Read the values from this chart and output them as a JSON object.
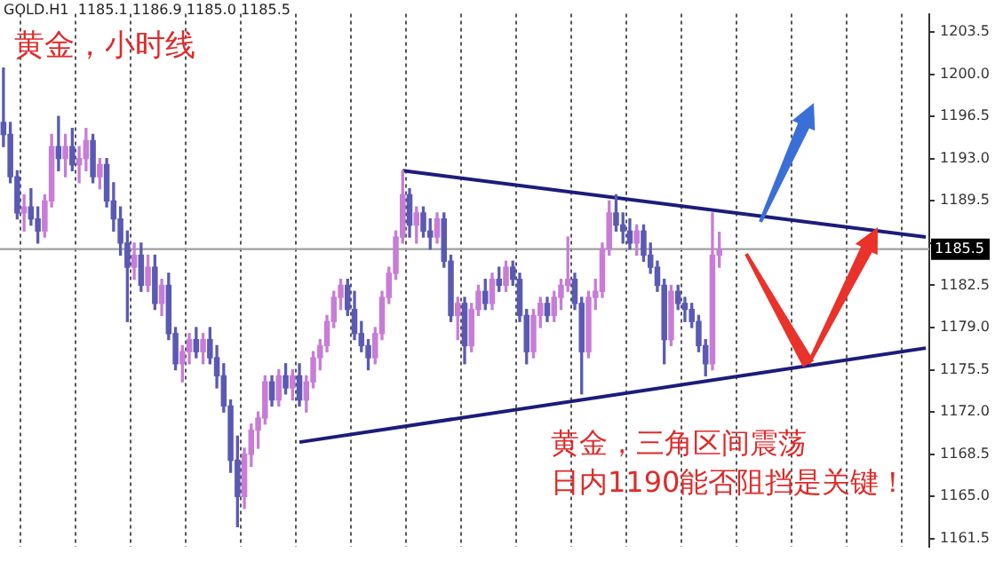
{
  "chart_data": {
    "type": "candlestick",
    "title": "黄金，小时线",
    "annotations": [
      "GOLD.H1  1185.1 1186.9 1185.0 1185.5",
      "黄金，三角区间震荡",
      "日内1190能否阻挡是关键！"
    ],
    "categories": [
      null,
      null,
      null,
      null,
      null,
      null,
      null,
      null,
      null,
      null,
      null,
      null,
      null,
      null,
      null,
      null,
      null,
      null,
      null,
      null,
      null,
      null,
      null,
      null,
      null,
      null,
      null,
      null,
      null,
      null,
      null,
      null,
      null,
      null,
      null,
      null,
      null,
      null,
      null,
      null,
      null,
      null,
      null,
      null,
      null,
      null,
      null,
      null,
      null,
      null,
      null,
      null,
      null,
      null,
      null,
      null,
      null,
      null,
      null,
      null,
      null,
      null,
      null,
      null,
      null,
      null,
      null,
      null,
      null,
      null,
      null,
      null,
      null,
      null,
      null,
      null,
      null,
      null,
      null,
      null,
      null,
      null,
      null,
      null,
      null,
      null,
      null,
      null,
      null,
      null,
      null,
      null,
      null,
      null,
      null,
      null,
      null,
      null,
      null,
      null,
      null,
      null,
      null,
      null,
      null,
      null,
      null,
      null,
      null,
      null,
      null,
      null,
      null,
      null,
      null,
      null,
      null,
      null,
      null,
      null,
      null,
      null,
      null,
      null,
      null,
      null,
      null,
      null,
      null,
      null,
      null,
      null,
      null,
      null,
      null
    ],
    "ohlc": [
      [
        1196,
        1200.5,
        1194,
        1195
      ],
      [
        1195,
        1196,
        1191,
        1191.5
      ],
      [
        1191.5,
        1192,
        1188,
        1188.5
      ],
      [
        1188.5,
        1190,
        1187,
        1189
      ],
      [
        1189,
        1190.5,
        1187.5,
        1188
      ],
      [
        1188,
        1189,
        1186,
        1187
      ],
      [
        1187,
        1190,
        1186.5,
        1189.5
      ],
      [
        1189.5,
        1195,
        1189,
        1194
      ],
      [
        1194,
        1196.5,
        1192,
        1193
      ],
      [
        1193,
        1195,
        1191.5,
        1194
      ],
      [
        1194,
        1195.5,
        1192,
        1192.5
      ],
      [
        1192.5,
        1194,
        1191,
        1193
      ],
      [
        1193,
        1195.5,
        1192,
        1194.5
      ],
      [
        1194.5,
        1195,
        1191,
        1191.5
      ],
      [
        1191.5,
        1193,
        1190.5,
        1192.5
      ],
      [
        1192.5,
        1193,
        1189,
        1189.5
      ],
      [
        1189.5,
        1191,
        1187,
        1188
      ],
      [
        1188,
        1189,
        1185,
        1186
      ],
      [
        1186,
        1187,
        1179.5,
        1184
      ],
      [
        1184,
        1186,
        1183,
        1185
      ],
      [
        1185,
        1186,
        1182,
        1182.5
      ],
      [
        1182.5,
        1185,
        1182,
        1184
      ],
      [
        1184,
        1185,
        1180.5,
        1181
      ],
      [
        1181,
        1183,
        1180,
        1182.5
      ],
      [
        1182.5,
        1183.5,
        1178,
        1178.5
      ],
      [
        1178.5,
        1179,
        1175.5,
        1176
      ],
      [
        1176,
        1177.5,
        1174.5,
        1177
      ],
      [
        1177,
        1178.5,
        1176,
        1178
      ],
      [
        1178,
        1179,
        1176.5,
        1177
      ],
      [
        1177,
        1178.5,
        1176,
        1178
      ],
      [
        1178,
        1179,
        1176,
        1176.5
      ],
      [
        1176.5,
        1177.5,
        1174,
        1175
      ],
      [
        1175,
        1176,
        1172,
        1172.5
      ],
      [
        1172.5,
        1173,
        1167,
        1168
      ],
      [
        1168,
        1170,
        1162.5,
        1165
      ],
      [
        1165,
        1169,
        1164,
        1168.5
      ],
      [
        1168.5,
        1171,
        1167.5,
        1170.5
      ],
      [
        1170.5,
        1172,
        1169,
        1171.5
      ],
      [
        1171.5,
        1175,
        1171,
        1174.5
      ],
      [
        1174.5,
        1175,
        1172.5,
        1173
      ],
      [
        1173,
        1175.5,
        1172.5,
        1175
      ],
      [
        1175,
        1176,
        1173.5,
        1174
      ],
      [
        1174,
        1175.5,
        1173,
        1175
      ],
      [
        1175,
        1176,
        1172.5,
        1173
      ],
      [
        1173,
        1175,
        1172,
        1174.5
      ],
      [
        1174.5,
        1177,
        1174,
        1176.5
      ],
      [
        1176.5,
        1178,
        1175.5,
        1177.5
      ],
      [
        1177.5,
        1180,
        1177,
        1179.5
      ],
      [
        1179.5,
        1182,
        1179,
        1181.5
      ],
      [
        1181.5,
        1183,
        1180.5,
        1182.5
      ],
      [
        1182.5,
        1183,
        1180,
        1180.5
      ],
      [
        1180.5,
        1182,
        1178,
        1178.5
      ],
      [
        1178.5,
        1179.5,
        1177,
        1177.5
      ],
      [
        1177.5,
        1178,
        1175.5,
        1176.5
      ],
      [
        1176.5,
        1179,
        1176,
        1178.5
      ],
      [
        1178.5,
        1182,
        1178,
        1181.5
      ],
      [
        1181.5,
        1184,
        1181,
        1183.5
      ],
      [
        1183.5,
        1187,
        1183,
        1186.5
      ],
      [
        1186.5,
        1192,
        1186,
        1190
      ],
      [
        1190,
        1190.5,
        1186.5,
        1187.5
      ],
      [
        1187.5,
        1189,
        1186,
        1188.5
      ],
      [
        1188.5,
        1189,
        1186.5,
        1187
      ],
      [
        1187,
        1188,
        1185.5,
        1186.5
      ],
      [
        1186.5,
        1188.5,
        1186,
        1188
      ],
      [
        1188,
        1188.5,
        1184,
        1184.5
      ],
      [
        1184.5,
        1185,
        1179.5,
        1180
      ],
      [
        1180,
        1181.5,
        1178,
        1181
      ],
      [
        1181,
        1181.5,
        1176,
        1177.5
      ],
      [
        1177.5,
        1181,
        1177,
        1180.5
      ],
      [
        1180.5,
        1182.5,
        1180,
        1182
      ],
      [
        1182,
        1183,
        1180.5,
        1181
      ],
      [
        1181,
        1183.5,
        1180.5,
        1183
      ],
      [
        1183,
        1184,
        1182,
        1182.5
      ],
      [
        1182.5,
        1184.5,
        1182,
        1184
      ],
      [
        1184,
        1184.5,
        1182.5,
        1183
      ],
      [
        1183,
        1183.5,
        1179.5,
        1180
      ],
      [
        1180,
        1180.5,
        1176,
        1177
      ],
      [
        1177,
        1180.5,
        1176.5,
        1180
      ],
      [
        1180,
        1181.5,
        1179,
        1181
      ],
      [
        1181,
        1181.5,
        1179.5,
        1180
      ],
      [
        1180,
        1182,
        1179.5,
        1181.5
      ],
      [
        1181.5,
        1183,
        1180.5,
        1182.5
      ],
      [
        1182.5,
        1186.5,
        1182,
        1183
      ],
      [
        1183,
        1183.5,
        1180.5,
        1181
      ],
      [
        1181,
        1181.5,
        1173.5,
        1177
      ],
      [
        1177,
        1182,
        1176.5,
        1181.5
      ],
      [
        1181.5,
        1183,
        1180.5,
        1182
      ],
      [
        1182,
        1186,
        1181.5,
        1185.5
      ],
      [
        1185.5,
        1189.5,
        1185,
        1188.5
      ],
      [
        1188.5,
        1190,
        1187,
        1187.5
      ],
      [
        1187.5,
        1188.5,
        1186,
        1187
      ],
      [
        1187,
        1188,
        1185.5,
        1186
      ],
      [
        1186,
        1187.5,
        1185,
        1187
      ],
      [
        1187,
        1187.5,
        1184.5,
        1185
      ],
      [
        1185,
        1186,
        1183.5,
        1184
      ],
      [
        1184,
        1184.5,
        1182,
        1182.5
      ],
      [
        1182.5,
        1183,
        1176,
        1178
      ],
      [
        1178,
        1182.5,
        1177.5,
        1182
      ],
      [
        1182,
        1182.5,
        1180.5,
        1181
      ],
      [
        1181,
        1181.5,
        1179.5,
        1180.5
      ],
      [
        1180.5,
        1181,
        1179,
        1179.5
      ],
      [
        1179.5,
        1180,
        1177,
        1177.5
      ],
      [
        1177.5,
        1178,
        1175,
        1176
      ],
      [
        1176,
        1188.5,
        1175.5,
        1185
      ],
      [
        1185,
        1186.9,
        1184,
        1185.5
      ],
      null,
      null,
      null,
      null,
      null,
      null,
      null,
      null,
      null,
      null,
      null,
      null,
      null,
      null,
      null,
      null,
      null,
      null,
      null,
      null,
      null,
      null,
      null,
      null,
      null,
      null,
      null,
      null,
      null,
      null
    ],
    "colors": [
      "#5a5ab4",
      "#5a5ab4",
      "#5a5ab4",
      "#c77dd6",
      "#5a5ab4",
      "#5a5ab4",
      "#c77dd6",
      "#c77dd6",
      "#5a5ab4",
      "#c77dd6",
      "#5a5ab4",
      "#c77dd6",
      "#c77dd6",
      "#5a5ab4",
      "#c77dd6",
      "#5a5ab4",
      "#5a5ab4",
      "#5a5ab4",
      "#5a5ab4",
      "#c77dd6",
      "#5a5ab4",
      "#c77dd6",
      "#5a5ab4",
      "#c77dd6",
      "#5a5ab4",
      "#5a5ab4",
      "#c77dd6",
      "#c77dd6",
      "#5a5ab4",
      "#c77dd6",
      "#5a5ab4",
      "#5a5ab4",
      "#5a5ab4",
      "#5a5ab4",
      "#5a5ab4",
      "#c77dd6",
      "#c77dd6",
      "#c77dd6",
      "#c77dd6",
      "#5a5ab4",
      "#c77dd6",
      "#5a5ab4",
      "#c77dd6",
      "#5a5ab4",
      "#c77dd6",
      "#c77dd6",
      "#c77dd6",
      "#c77dd6",
      "#c77dd6",
      "#c77dd6",
      "#5a5ab4",
      "#5a5ab4",
      "#5a5ab4",
      "#5a5ab4",
      "#c77dd6",
      "#c77dd6",
      "#c77dd6",
      "#c77dd6",
      "#c77dd6",
      "#5a5ab4",
      "#c77dd6",
      "#5a5ab4",
      "#5a5ab4",
      "#c77dd6",
      "#5a5ab4",
      "#5a5ab4",
      "#c77dd6",
      "#5a5ab4",
      "#c77dd6",
      "#c77dd6",
      "#5a5ab4",
      "#c77dd6",
      "#5a5ab4",
      "#c77dd6",
      "#5a5ab4",
      "#5a5ab4",
      "#5a5ab4",
      "#c77dd6",
      "#c77dd6",
      "#5a5ab4",
      "#c77dd6",
      "#c77dd6",
      "#c77dd6",
      "#5a5ab4",
      "#5a5ab4",
      "#c77dd6",
      "#c77dd6",
      "#c77dd6",
      "#c77dd6",
      "#5a5ab4",
      "#5a5ab4",
      "#5a5ab4",
      "#c77dd6",
      "#5a5ab4",
      "#5a5ab4",
      "#5a5ab4",
      "#5a5ab4",
      "#c77dd6",
      "#5a5ab4",
      "#5a5ab4",
      "#5a5ab4",
      "#5a5ab4",
      "#5a5ab4",
      "#c77dd6",
      "#c77dd6",
      null,
      null,
      null,
      null,
      null,
      null,
      null,
      null,
      null,
      null,
      null,
      null,
      null,
      null,
      null,
      null,
      null,
      null,
      null,
      null,
      null,
      null,
      null,
      null,
      null,
      null,
      null,
      null,
      null,
      null
    ],
    "series": [
      {
        "type": "line",
        "color": "#1c1c7a",
        "values": [
          null,
          null,
          null,
          null,
          null,
          null,
          null,
          null,
          null,
          null,
          null,
          null,
          null,
          null,
          null,
          null,
          null,
          null,
          null,
          null,
          null,
          null,
          null,
          null,
          null,
          null,
          null,
          null,
          null,
          null,
          null,
          null,
          null,
          null,
          null,
          null,
          null,
          null,
          null,
          null,
          null,
          null,
          null,
          null,
          null,
          null,
          null,
          null,
          null,
          null,
          null,
          null,
          null,
          null,
          null,
          null,
          null,
          null,
          1192,
          null,
          null,
          null,
          null,
          null,
          null,
          null,
          null,
          null,
          null,
          null,
          null,
          null,
          null,
          null,
          null,
          null,
          null,
          null,
          null,
          null,
          null,
          null,
          null,
          null,
          null,
          null,
          null,
          null,
          null,
          null,
          null,
          null,
          null,
          null,
          null,
          null,
          null,
          null,
          null,
          null,
          null,
          null,
          null,
          null,
          null,
          null,
          null,
          null,
          null,
          null,
          null,
          null,
          null,
          null,
          null,
          null,
          null,
          null,
          null,
          null,
          null,
          null,
          null,
          null,
          null,
          null,
          null,
          null,
          null,
          null,
          null,
          null,
          null,
          null,
          1186.5
        ]
      },
      {
        "type": "line",
        "color": "#1c1c7a",
        "values": [
          null,
          null,
          null,
          null,
          null,
          null,
          null,
          null,
          null,
          null,
          null,
          null,
          null,
          null,
          null,
          null,
          null,
          null,
          null,
          null,
          null,
          null,
          null,
          null,
          null,
          null,
          null,
          null,
          null,
          null,
          null,
          null,
          null,
          null,
          null,
          null,
          null,
          null,
          null,
          null,
          null,
          null,
          null,
          1169.5,
          null,
          null,
          null,
          null,
          null,
          null,
          null,
          null,
          null,
          null,
          null,
          null,
          null,
          null,
          null,
          null,
          null,
          null,
          null,
          null,
          null,
          null,
          null,
          null,
          null,
          null,
          null,
          null,
          null,
          null,
          null,
          null,
          null,
          null,
          null,
          null,
          null,
          null,
          null,
          null,
          null,
          null,
          null,
          null,
          null,
          null,
          null,
          null,
          null,
          null,
          null,
          null,
          null,
          null,
          null,
          null,
          null,
          null,
          null,
          null,
          null,
          null,
          null,
          null,
          null,
          null,
          null,
          null,
          null,
          null,
          null,
          null,
          null,
          null,
          null,
          null,
          null,
          null,
          null,
          null,
          null,
          null,
          null,
          null,
          null,
          null,
          null,
          null,
          null,
          null,
          1177.3
        ]
      }
    ],
    "ref_lines": [
      {
        "axis": "y",
        "value": 1185.5,
        "label": "1185.5",
        "color": "#a0a0a0"
      }
    ],
    "ylim": [
      1160.8,
      1205
    ],
    "yticks": [
      1161.5,
      {
        "value": 1165,
        "label": "1165.0"
      },
      1168.5,
      {
        "value": 1172,
        "label": "1172.0"
      },
      1175.5,
      {
        "value": 1179,
        "label": "1179.0"
      },
      1182.5,
      {
        "value": 1186,
        "label": null
      },
      1189.5,
      {
        "value": 1193,
        "label": "1193.0"
      },
      1196.5,
      {
        "value": 1200,
        "label": "1200.0"
      },
      1203.5
    ],
    "grid": "x",
    "tick_labels": "y",
    "legend": false
  }
}
